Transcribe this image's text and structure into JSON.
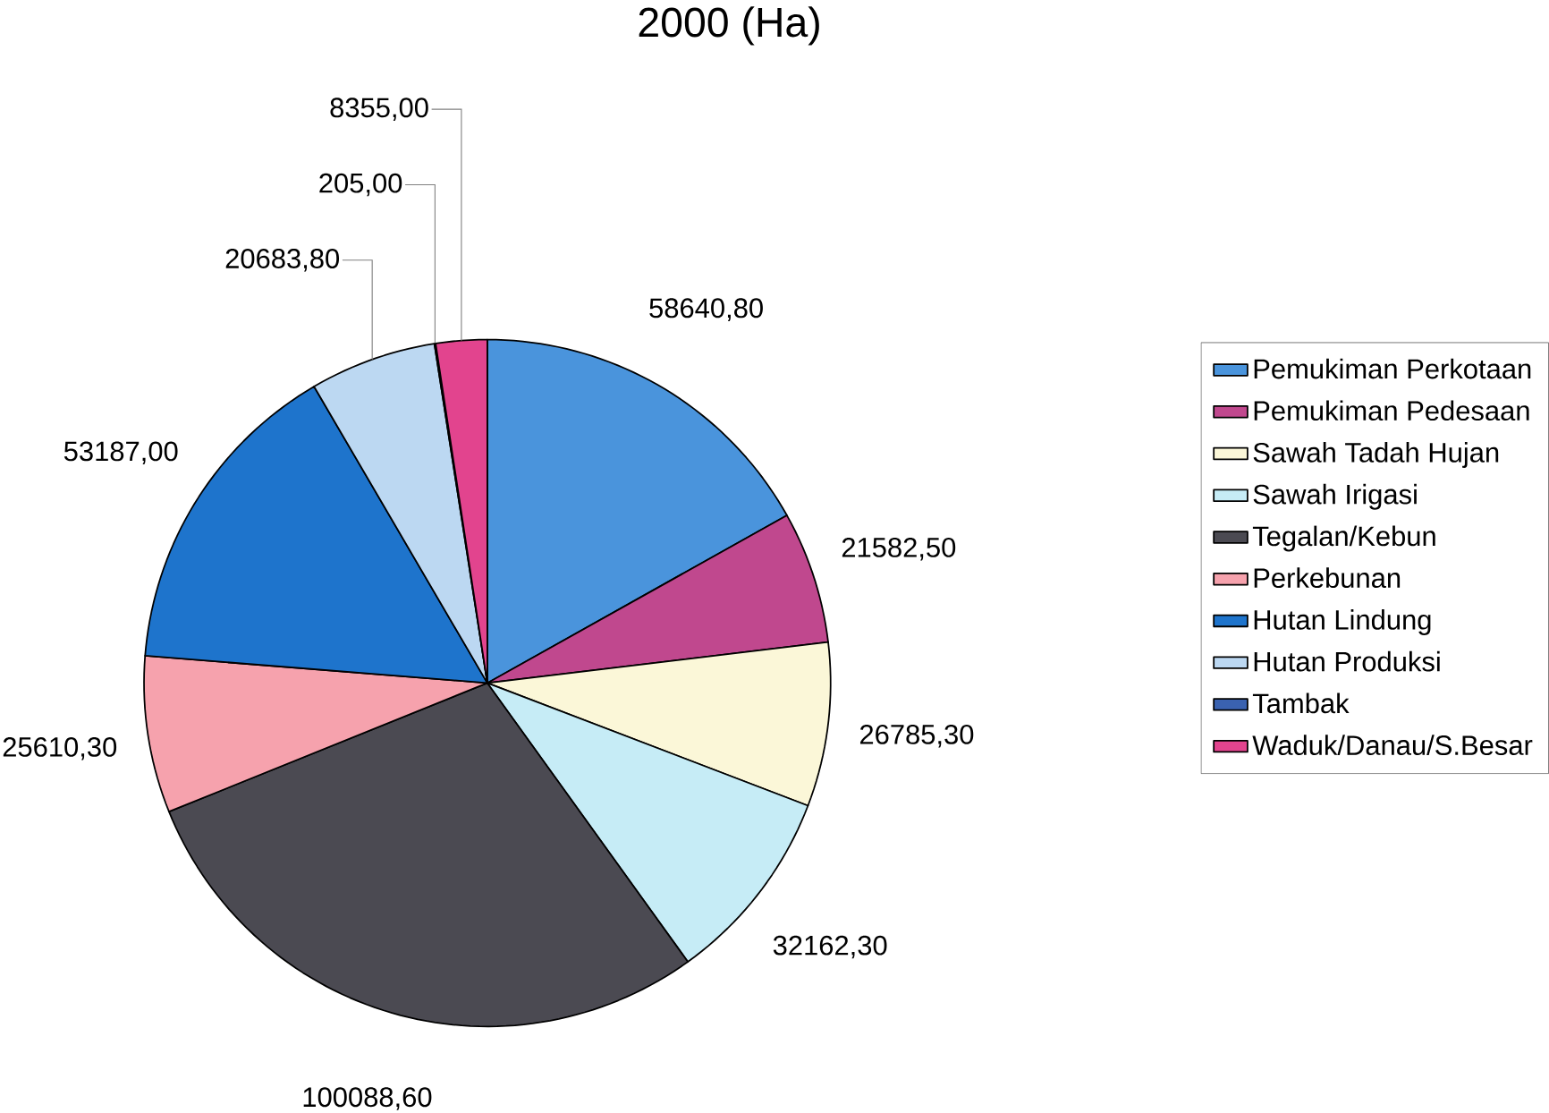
{
  "chart_data": {
    "type": "pie",
    "title": "2000 (Ha)",
    "categories": [
      "Pemukiman Perkotaan",
      "Pemukiman Pedesaan",
      "Sawah Tadah Hujan",
      "Sawah Irigasi",
      "Tegalan/Kebun",
      "Perkebunan",
      "Hutan Lindung",
      "Hutan Produksi",
      "Tambak",
      "Waduk/Danau/S.Besar"
    ],
    "values": [
      58640.8,
      21582.5,
      26785.3,
      32162.3,
      100088.6,
      25610.3,
      53187.0,
      20683.8,
      205.0,
      8355.0
    ],
    "value_labels": [
      "58640,80",
      "21582,50",
      "26785,30",
      "32162,30",
      "100088,60",
      "25610,30",
      "53187,00",
      "20683,80",
      "205,00",
      "8355,00"
    ],
    "colors": [
      "#4a94dc",
      "#c0488e",
      "#fbf7d8",
      "#c6ecf6",
      "#4b4a52",
      "#f6a2ad",
      "#1e74cc",
      "#bcd8f2",
      "#3a62b0",
      "#e2448e"
    ],
    "legend": "right"
  }
}
